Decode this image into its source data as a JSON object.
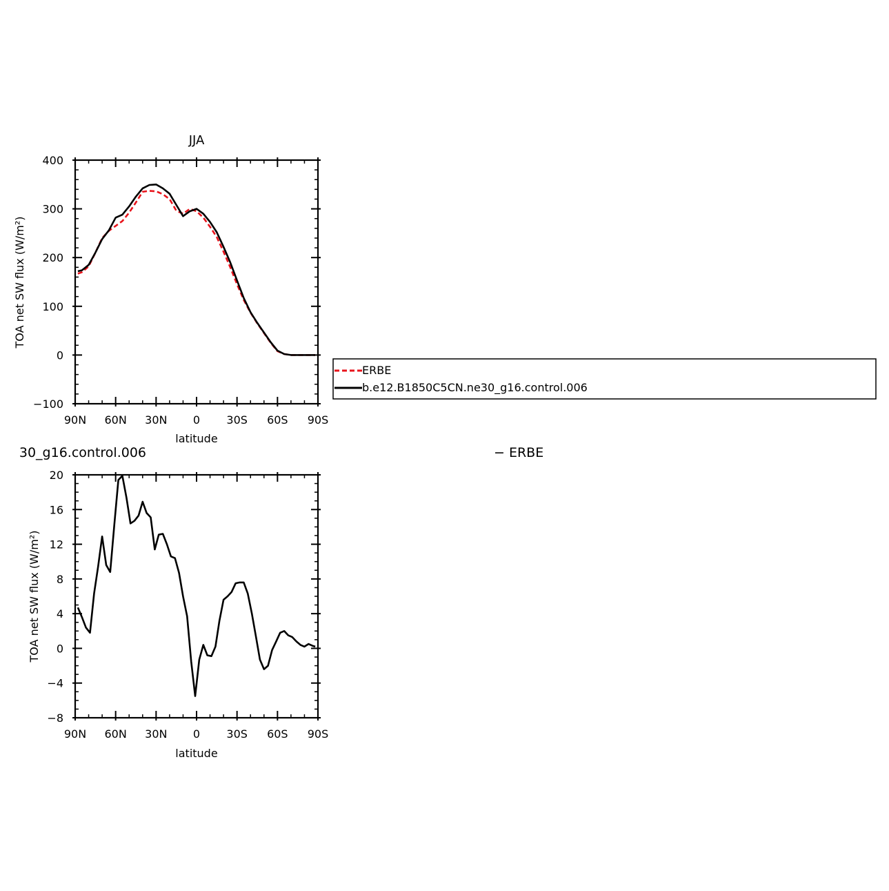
{
  "top_panel": {
    "title": "JJA",
    "legend": {
      "items": [
        "ERBE",
        "b.e12.B1850C5CN.ne30_g16.control.006"
      ]
    }
  },
  "bottom_panel": {
    "title_left": "30_g16.control.006",
    "title_right": "− ERBE"
  },
  "colors": {
    "erbe": "#e8141c",
    "model": "#000000",
    "axes": "#000000"
  },
  "chart_data": [
    {
      "type": "line",
      "title": "JJA",
      "xlabel": "latitude",
      "ylabel": "TOA net SW flux (W/m²)",
      "xlim": [
        90,
        -90
      ],
      "ylim": [
        -100,
        400
      ],
      "xticks": [
        90,
        60,
        30,
        0,
        -30,
        -60,
        -90
      ],
      "xticklabels": [
        "90N",
        "60N",
        "30N",
        "0",
        "30S",
        "60S",
        "90S"
      ],
      "yticks": [
        -100,
        0,
        100,
        200,
        300,
        400
      ],
      "yticklabels": [
        "−100",
        "0",
        "100",
        "200",
        "300",
        "400"
      ],
      "legend_position": "right, outside",
      "series": [
        {
          "name": "ERBE",
          "style": "dashed",
          "color": "#e8141c",
          "x": [
            88,
            85,
            80,
            75,
            70,
            65,
            60,
            55,
            50,
            45,
            40,
            35,
            30,
            25,
            20,
            15,
            10,
            5,
            0,
            -5,
            -10,
            -15,
            -20,
            -25,
            -30,
            -35,
            -40,
            -45,
            -50,
            -55,
            -60,
            -65,
            -70,
            -75,
            -80,
            -85,
            -88
          ],
          "y": [
            167,
            170,
            182,
            210,
            240,
            255,
            265,
            275,
            292,
            313,
            335,
            337,
            336,
            330,
            320,
            296,
            290,
            300,
            295,
            282,
            263,
            242,
            212,
            180,
            145,
            113,
            87,
            65,
            45,
            25,
            8,
            2,
            0,
            0,
            0,
            0,
            0
          ]
        },
        {
          "name": "b.e12.B1850C5CN.ne30_g16.control.006",
          "style": "solid",
          "color": "#000000",
          "x": [
            88,
            85,
            80,
            75,
            70,
            65,
            60,
            55,
            50,
            45,
            40,
            35,
            30,
            25,
            20,
            15,
            10,
            5,
            0,
            -5,
            -10,
            -15,
            -20,
            -25,
            -30,
            -35,
            -40,
            -45,
            -50,
            -55,
            -60,
            -65,
            -70,
            -75,
            -80,
            -85,
            -88
          ],
          "y": [
            172,
            174,
            185,
            210,
            238,
            256,
            282,
            288,
            305,
            325,
            342,
            349,
            350,
            342,
            331,
            308,
            285,
            295,
            300,
            290,
            273,
            252,
            222,
            190,
            153,
            117,
            88,
            66,
            46,
            26,
            9,
            2,
            0,
            0,
            0,
            0,
            0
          ]
        }
      ]
    },
    {
      "type": "line",
      "title": "30_g16.control.006 − ERBE",
      "xlabel": "latitude",
      "ylabel": "TOA net SW flux (W/m²)",
      "xlim": [
        90,
        -90
      ],
      "ylim": [
        -8,
        20
      ],
      "xticks": [
        90,
        60,
        30,
        0,
        -30,
        -60,
        -90
      ],
      "xticklabels": [
        "90N",
        "60N",
        "30N",
        "0",
        "30S",
        "60S",
        "90S"
      ],
      "yticks": [
        -8,
        -4,
        0,
        4,
        8,
        12,
        16,
        20
      ],
      "yticklabels": [
        "−8",
        "−4",
        "0",
        "4",
        "8",
        "12",
        "16",
        "20"
      ],
      "series": [
        {
          "name": "",
          "style": "solid",
          "color": "#000000",
          "x": [
            88,
            85,
            82,
            79,
            76,
            73,
            70,
            67,
            64,
            61,
            58,
            55,
            52,
            49,
            46,
            43,
            40,
            37,
            34,
            31,
            28,
            25,
            22,
            19,
            16,
            13,
            10,
            7,
            4,
            1,
            -2,
            -5,
            -8,
            -11,
            -14,
            -17,
            -20,
            -23,
            -26,
            -29,
            -32,
            -35,
            -38,
            -41,
            -44,
            -47,
            -50,
            -53,
            -56,
            -59,
            -62,
            -65,
            -68,
            -71,
            -74,
            -77,
            -80,
            -83,
            -86,
            -88
          ],
          "y": [
            4.7,
            3.6,
            2.4,
            1.8,
            6.3,
            9.4,
            12.9,
            9.6,
            8.8,
            14.2,
            19.4,
            19.9,
            17.4,
            14.4,
            14.7,
            15.3,
            16.9,
            15.6,
            15.1,
            11.4,
            13.1,
            13.2,
            12.0,
            10.6,
            10.4,
            8.7,
            6.0,
            3.7,
            -1.5,
            -5.5,
            -1.3,
            0.4,
            -0.8,
            -0.9,
            0.2,
            3.2,
            5.6,
            6.0,
            6.5,
            7.5,
            7.6,
            7.6,
            6.3,
            4.0,
            1.4,
            -1.3,
            -2.4,
            -2.0,
            -0.2,
            0.8,
            1.8,
            2.0,
            1.5,
            1.3,
            0.8,
            0.4,
            0.2,
            0.5,
            0.3,
            0.2
          ]
        }
      ]
    }
  ]
}
